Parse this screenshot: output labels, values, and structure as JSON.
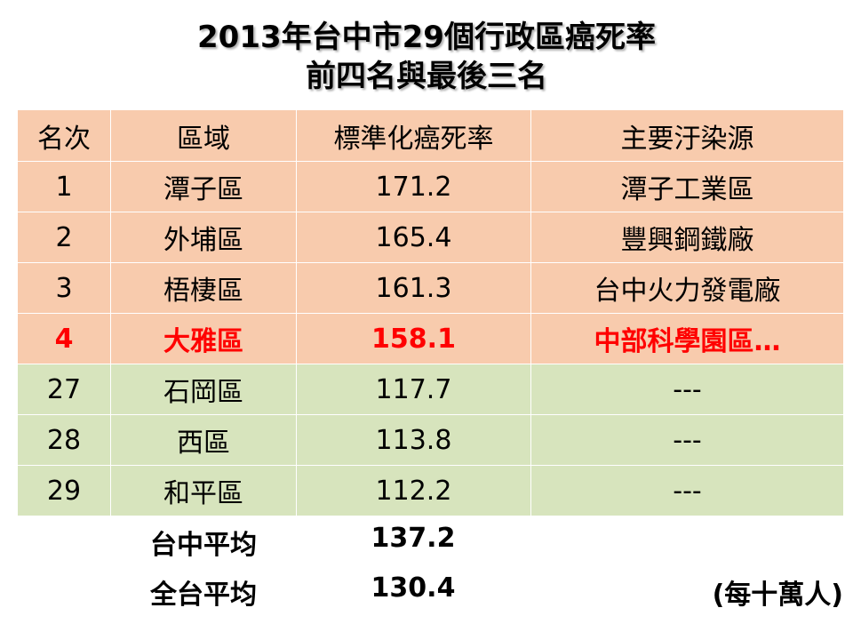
{
  "title": {
    "line1": "2013年台中市29個行政區癌死率",
    "line2": "前四名與最後三名"
  },
  "table": {
    "headers": [
      "名次",
      "區域",
      "標準化癌死率",
      "主要汙染源"
    ],
    "rows": [
      {
        "rank": "1",
        "district": "潭子區",
        "rate": "171.2",
        "source": "潭子工業區"
      },
      {
        "rank": "2",
        "district": "外埔區",
        "rate": "165.4",
        "source": "豐興鋼鐵廠"
      },
      {
        "rank": "3",
        "district": "梧棲區",
        "rate": "161.3",
        "source": "台中火力發電廠"
      },
      {
        "rank": "4",
        "district": "大雅區",
        "rate": "158.1",
        "source": "中部科學園區…"
      },
      {
        "rank": "27",
        "district": "石岡區",
        "rate": "117.7",
        "source": "---"
      },
      {
        "rank": "28",
        "district": "西區",
        "rate": "113.8",
        "source": "---"
      },
      {
        "rank": "29",
        "district": "和平區",
        "rate": "112.2",
        "source": "---"
      }
    ]
  },
  "summary": {
    "taichung_label": "台中平均",
    "taichung_value": "137.2",
    "national_label": "全台平均",
    "national_value": "130.4",
    "unit": "(每十萬人)"
  },
  "colors": {
    "top_rows": "#f8cbad",
    "bottom_rows": "#d7e4bd",
    "highlight_text": "#ff0000"
  }
}
